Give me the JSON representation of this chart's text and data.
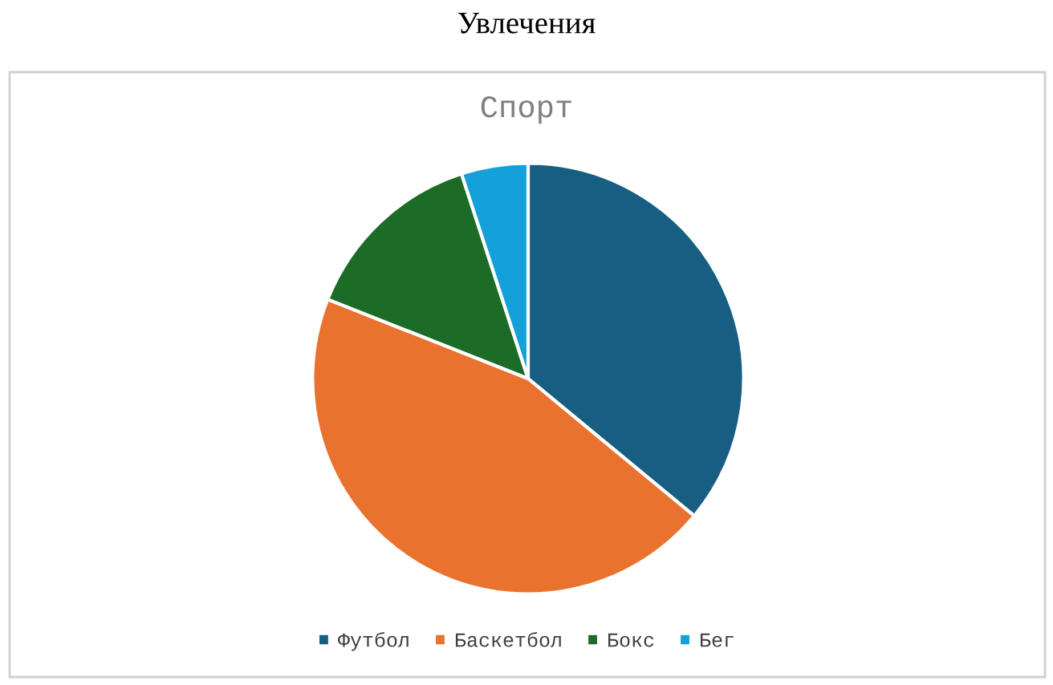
{
  "chart_data": {
    "type": "pie",
    "title": "Увлечения",
    "subtitle": "Спорт",
    "categories": [
      "Футбол",
      "Баскетбол",
      "Бокс",
      "Бег"
    ],
    "values": [
      36,
      45,
      14,
      5
    ],
    "colors": [
      "#175e82",
      "#e9722f",
      "#1c6b27",
      "#14a0d9"
    ],
    "legend": "bottom"
  }
}
